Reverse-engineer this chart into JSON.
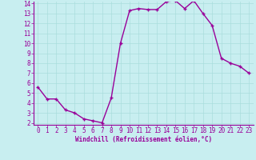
{
  "x": [
    0,
    1,
    2,
    3,
    4,
    5,
    6,
    7,
    8,
    9,
    10,
    11,
    12,
    13,
    14,
    15,
    16,
    17,
    18,
    19,
    20,
    21,
    22,
    23
  ],
  "y": [
    5.6,
    4.4,
    4.4,
    3.3,
    3.0,
    2.4,
    2.2,
    2.0,
    4.5,
    10.0,
    13.3,
    13.5,
    13.4,
    13.4,
    14.2,
    14.3,
    13.5,
    14.3,
    13.0,
    11.8,
    8.5,
    8.0,
    7.7,
    7.0
  ],
  "line_color": "#990099",
  "marker": "+",
  "marker_size": 3.5,
  "marker_lw": 1.0,
  "bg_color": "#c8eef0",
  "grid_color": "#aadddd",
  "xlabel": "Windchill (Refroidissement éolien,°C)",
  "xlabel_color": "#990099",
  "tick_color": "#990099",
  "spine_color": "#990099",
  "ylim": [
    2,
    14
  ],
  "xlim": [
    -0.5,
    23.5
  ],
  "yticks": [
    2,
    3,
    4,
    5,
    6,
    7,
    8,
    9,
    10,
    11,
    12,
    13,
    14
  ],
  "xticks": [
    0,
    1,
    2,
    3,
    4,
    5,
    6,
    7,
    8,
    9,
    10,
    11,
    12,
    13,
    14,
    15,
    16,
    17,
    18,
    19,
    20,
    21,
    22,
    23
  ],
  "tick_fontsize": 5.5,
  "xlabel_fontsize": 5.5,
  "linewidth": 1.0
}
